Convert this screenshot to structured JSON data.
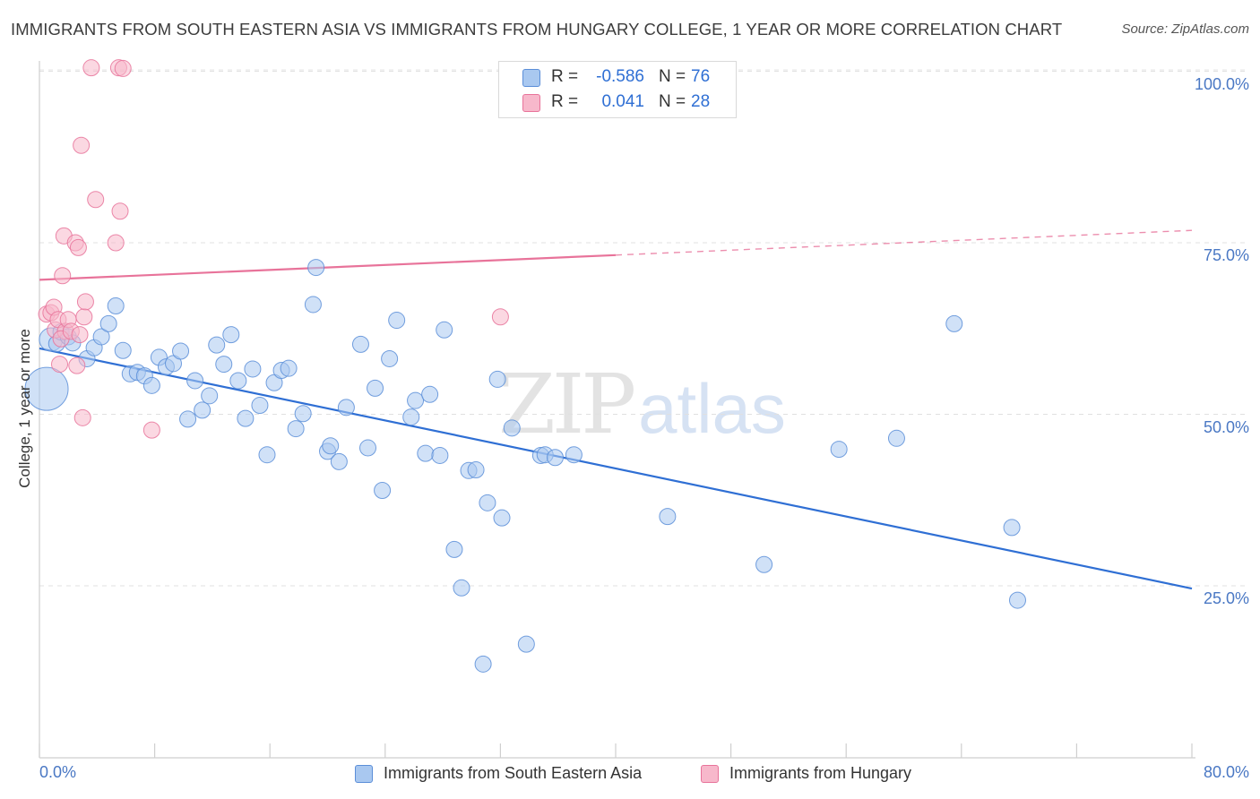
{
  "header": {
    "title": "IMMIGRANTS FROM SOUTH EASTERN ASIA VS IMMIGRANTS FROM HUNGARY COLLEGE, 1 YEAR OR MORE CORRELATION CHART",
    "source": "Source: ZipAtlas.com"
  },
  "watermark": {
    "part1": "ZIP",
    "part2": "atlas"
  },
  "stats": {
    "rows": [
      {
        "r_label": "R =",
        "r_value": "-0.586",
        "n_label": "N =",
        "n_value": "76",
        "color": "#a9c8f0"
      },
      {
        "r_label": "R =",
        "r_value": "0.041",
        "n_label": "N =",
        "n_value": "28",
        "color": "#f7b8cb"
      }
    ]
  },
  "legend": {
    "items": [
      {
        "label": "Immigrants from South Eastern Asia",
        "color": "#a9c8f0"
      },
      {
        "label": "Immigrants from Hungary",
        "color": "#f7b8cb"
      }
    ]
  },
  "chart_data": {
    "type": "scatter",
    "title": "IMMIGRANTS FROM SOUTH EASTERN ASIA VS IMMIGRANTS FROM HUNGARY COLLEGE, 1 YEAR OR MORE CORRELATION CHART",
    "xlabel": "",
    "ylabel": "College, 1 year or more",
    "xlim": [
      0,
      80
    ],
    "ylim": [
      0,
      102
    ],
    "x_tick_labels": [
      "0.0%",
      "80.0%"
    ],
    "y_ticks": [
      25,
      50,
      75,
      100
    ],
    "y_tick_labels": [
      "25.0%",
      "50.0%",
      "75.0%",
      "100.0%"
    ],
    "grid": true,
    "legend_position": "bottom",
    "colors": {
      "blue_fill": "#a9c8f0",
      "blue_line": "#2f6fd4",
      "pink_fill": "#f7b8cb",
      "pink_line": "#e8739a",
      "axis_text": "#4a78c4"
    },
    "series": [
      {
        "name": "Immigrants from South Eastern Asia",
        "color": "#a9c8f0",
        "r": -0.586,
        "n": 76,
        "trend": {
          "x": [
            0,
            80
          ],
          "y": [
            59.6,
            24.6
          ],
          "style": "solid"
        },
        "points": [
          [
            0.5,
            53.7
          ],
          [
            0.8,
            60.9
          ],
          [
            1.2,
            60.3
          ],
          [
            1.5,
            62
          ],
          [
            2,
            61.3
          ],
          [
            2.3,
            60.4
          ],
          [
            3.3,
            58.1
          ],
          [
            3.8,
            59.7
          ],
          [
            4.3,
            61.3
          ],
          [
            4.8,
            63.2
          ],
          [
            5.3,
            65.8
          ],
          [
            5.8,
            59.3
          ],
          [
            6.3,
            55.9
          ],
          [
            6.8,
            56.1
          ],
          [
            7.3,
            55.6
          ],
          [
            7.8,
            54.2
          ],
          [
            8.3,
            58.3
          ],
          [
            8.8,
            56.9
          ],
          [
            9.3,
            57.4
          ],
          [
            9.8,
            59.2
          ],
          [
            10.3,
            49.3
          ],
          [
            10.8,
            54.9
          ],
          [
            11.3,
            50.6
          ],
          [
            11.8,
            52.7
          ],
          [
            12.3,
            60.1
          ],
          [
            12.8,
            57.3
          ],
          [
            13.3,
            61.6
          ],
          [
            13.8,
            54.9
          ],
          [
            14.3,
            49.4
          ],
          [
            14.8,
            56.6
          ],
          [
            15.3,
            51.3
          ],
          [
            15.8,
            44.1
          ],
          [
            16.3,
            54.6
          ],
          [
            16.8,
            56.4
          ],
          [
            17.3,
            56.7
          ],
          [
            17.8,
            47.9
          ],
          [
            18.3,
            50.1
          ],
          [
            19,
            66
          ],
          [
            19.2,
            71.4
          ],
          [
            20,
            44.6
          ],
          [
            20.2,
            45.4
          ],
          [
            20.8,
            43.1
          ],
          [
            21.3,
            51
          ],
          [
            22.3,
            60.2
          ],
          [
            22.8,
            45.1
          ],
          [
            23.3,
            53.8
          ],
          [
            23.8,
            38.9
          ],
          [
            24.3,
            58.1
          ],
          [
            24.8,
            63.7
          ],
          [
            25.8,
            49.6
          ],
          [
            26.1,
            52
          ],
          [
            26.8,
            44.3
          ],
          [
            27.1,
            52.9
          ],
          [
            27.8,
            44
          ],
          [
            28.1,
            62.3
          ],
          [
            28.8,
            30.3
          ],
          [
            29.3,
            24.7
          ],
          [
            29.8,
            41.8
          ],
          [
            30.3,
            41.9
          ],
          [
            30.8,
            13.6
          ],
          [
            31.1,
            37.1
          ],
          [
            32.1,
            34.9
          ],
          [
            31.8,
            55.1
          ],
          [
            32.8,
            48
          ],
          [
            33.8,
            16.5
          ],
          [
            34.8,
            44
          ],
          [
            35.1,
            44.1
          ],
          [
            35.8,
            43.7
          ],
          [
            37.1,
            44.1
          ],
          [
            43.6,
            35.1
          ],
          [
            50.3,
            28.1
          ],
          [
            55.5,
            44.9
          ],
          [
            59.5,
            46.5
          ],
          [
            63.5,
            63.2
          ],
          [
            67.5,
            33.5
          ],
          [
            67.9,
            22.9
          ]
        ]
      },
      {
        "name": "Immigrants from Hungary",
        "color": "#f7b8cb",
        "r": 0.041,
        "n": 28,
        "trend": {
          "x": [
            0,
            40
          ],
          "y": [
            69.6,
            73.2
          ],
          "style": "solid",
          "extended_x": [
            40,
            80
          ],
          "extended_y": [
            73.2,
            76.8
          ],
          "extended_style": "dashed"
        },
        "points": [
          [
            0.5,
            64.6
          ],
          [
            0.8,
            64.8
          ],
          [
            1,
            65.6
          ],
          [
            1.1,
            62.3
          ],
          [
            1.3,
            63.8
          ],
          [
            1.4,
            57.3
          ],
          [
            1.6,
            70.2
          ],
          [
            1.8,
            62.1
          ],
          [
            1.5,
            61
          ],
          [
            1.7,
            76
          ],
          [
            2,
            63.8
          ],
          [
            2.2,
            62.1
          ],
          [
            2.5,
            75
          ],
          [
            2.6,
            57.1
          ],
          [
            2.7,
            74.3
          ],
          [
            2.8,
            61.6
          ],
          [
            2.9,
            89.2
          ],
          [
            3,
            49.5
          ],
          [
            3.1,
            64.2
          ],
          [
            3.2,
            66.4
          ],
          [
            3.6,
            100.5
          ],
          [
            3.9,
            81.3
          ],
          [
            5.3,
            75
          ],
          [
            5.5,
            100.5
          ],
          [
            5.6,
            79.6
          ],
          [
            5.8,
            100.4
          ],
          [
            7.8,
            47.7
          ],
          [
            32,
            64.2
          ]
        ]
      }
    ]
  }
}
